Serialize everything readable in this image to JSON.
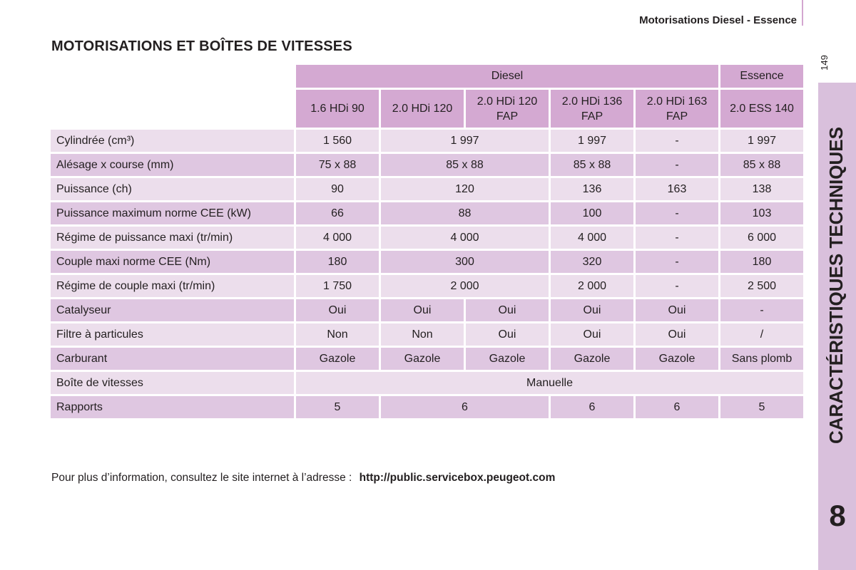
{
  "header": {
    "title": "Motorisations Diesel - Essence",
    "page_number": "149"
  },
  "section": {
    "title": "CARACTÉRISTIQUES TECHNIQUES",
    "chapter_number": "8"
  },
  "table": {
    "title": "MOTORISATIONS ET BOÎTES DE VITESSES",
    "groups": [
      "Diesel",
      "Essence"
    ],
    "models": [
      "1.6 HDi 90",
      "2.0 HDi 120",
      "2.0 HDi 120\nFAP",
      "2.0 HDi 136\nFAP",
      "2.0 HDi 163\nFAP",
      "2.0 ESS 140"
    ],
    "rows": [
      {
        "label": "Cylindrée (cm³)",
        "cells": [
          "1 560",
          "1 997",
          "1 997",
          "-",
          "1 997"
        ],
        "spans": [
          1,
          2,
          1,
          1,
          1
        ]
      },
      {
        "label": "Alésage x course (mm)",
        "cells": [
          "75 x 88",
          "85 x 88",
          "85 x 88",
          "-",
          "85 x 88"
        ],
        "spans": [
          1,
          2,
          1,
          1,
          1
        ]
      },
      {
        "label": "Puissance (ch)",
        "cells": [
          "90",
          "120",
          "136",
          "163",
          "138"
        ],
        "spans": [
          1,
          2,
          1,
          1,
          1
        ]
      },
      {
        "label": "Puissance maximum norme CEE (kW)",
        "cells": [
          "66",
          "88",
          "100",
          "-",
          "103"
        ],
        "spans": [
          1,
          2,
          1,
          1,
          1
        ]
      },
      {
        "label": "Régime de puissance maxi (tr/min)",
        "cells": [
          "4 000",
          "4 000",
          "4 000",
          "-",
          "6 000"
        ],
        "spans": [
          1,
          2,
          1,
          1,
          1
        ]
      },
      {
        "label": "Couple maxi norme CEE (Nm)",
        "cells": [
          "180",
          "300",
          "320",
          "-",
          "180"
        ],
        "spans": [
          1,
          2,
          1,
          1,
          1
        ]
      },
      {
        "label": "Régime de couple maxi (tr/min)",
        "cells": [
          "1 750",
          "2 000",
          "2 000",
          "-",
          "2 500"
        ],
        "spans": [
          1,
          2,
          1,
          1,
          1
        ]
      },
      {
        "label": "Catalyseur",
        "cells": [
          "Oui",
          "Oui",
          "Oui",
          "Oui",
          "Oui",
          "-"
        ],
        "spans": [
          1,
          1,
          1,
          1,
          1,
          1
        ]
      },
      {
        "label": "Filtre à particules",
        "cells": [
          "Non",
          "Non",
          "Oui",
          "Oui",
          "Oui",
          "/"
        ],
        "spans": [
          1,
          1,
          1,
          1,
          1,
          1
        ]
      },
      {
        "label": "Carburant",
        "cells": [
          "Gazole",
          "Gazole",
          "Gazole",
          "Gazole",
          "Gazole",
          "Sans plomb"
        ],
        "spans": [
          1,
          1,
          1,
          1,
          1,
          1
        ]
      },
      {
        "label": "Boîte de vitesses",
        "cells": [
          "Manuelle"
        ],
        "spans": [
          6
        ]
      },
      {
        "label": "Rapports",
        "cells": [
          "5",
          "6",
          "6",
          "6",
          "5"
        ],
        "spans": [
          1,
          2,
          1,
          1,
          1
        ]
      }
    ]
  },
  "footnote": {
    "text": "Pour plus d’information, consultez le site internet à l’adresse :",
    "url": "http://public.servicebox.peugeot.com"
  },
  "colors": {
    "header_cell": "#d4a9d2",
    "row_light": "#ecdeec",
    "row_dark": "#dfc7e1",
    "side_tab": "#d9c0dc"
  }
}
